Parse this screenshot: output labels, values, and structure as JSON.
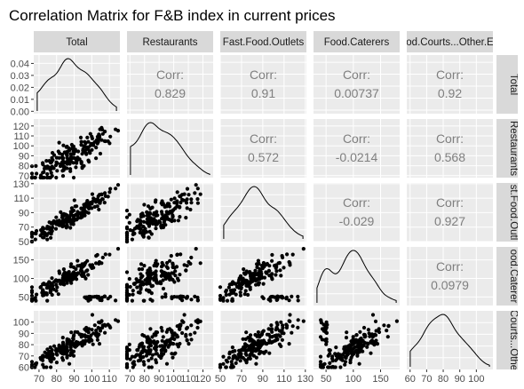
{
  "chart_data": {
    "type": "scatter-matrix",
    "title": "Correlation Matrix for F&B index in current prices",
    "variables": [
      {
        "label": "Total",
        "row_label": "Total",
        "ticks": [
          70,
          80,
          90,
          100,
          110
        ],
        "range": [
          67,
          116
        ]
      },
      {
        "label": "Restaurants",
        "row_label": "Restaurants",
        "ticks": [
          70,
          80,
          90,
          100,
          110,
          120
        ],
        "range": [
          68,
          127
        ]
      },
      {
        "label": "Fast.Food.Outlets",
        "row_label": "st.Food.Outl",
        "ticks": [
          50,
          70,
          90,
          110,
          130
        ],
        "range": [
          50,
          131
        ]
      },
      {
        "label": "Food.Caterers",
        "row_label": "ood.Caterer",
        "ticks": [
          50,
          100,
          150
        ],
        "range": [
          27,
          185
        ]
      },
      {
        "label": "od.Courts...Other.E",
        "row_label": "Courts...Othe",
        "ticks": [
          60,
          70,
          80,
          90,
          100
        ],
        "range": [
          58,
          110
        ]
      }
    ],
    "density_axis": {
      "ticks": [
        "0.00",
        "0.01",
        "0.02",
        "0.03",
        "0.04"
      ],
      "values": [
        0,
        0.01,
        0.02,
        0.03,
        0.04
      ],
      "range": [
        -0.002,
        0.047
      ]
    },
    "correlations": [
      {
        "row": 0,
        "col": 1,
        "label": "Corr:",
        "value": "0.829"
      },
      {
        "row": 0,
        "col": 2,
        "label": "Corr:",
        "value": "0.91"
      },
      {
        "row": 0,
        "col": 3,
        "label": "Corr:",
        "value": "0.00737"
      },
      {
        "row": 0,
        "col": 4,
        "label": "Corr:",
        "value": "0.92"
      },
      {
        "row": 1,
        "col": 2,
        "label": "Corr:",
        "value": "0.572"
      },
      {
        "row": 1,
        "col": 3,
        "label": "Corr:",
        "value": "-0.0214"
      },
      {
        "row": 1,
        "col": 4,
        "label": "Corr:",
        "value": "0.568"
      },
      {
        "row": 2,
        "col": 3,
        "label": "Corr:",
        "value": "-0.029"
      },
      {
        "row": 2,
        "col": 4,
        "label": "Corr:",
        "value": "0.927"
      },
      {
        "row": 3,
        "col": 4,
        "label": "Corr:",
        "value": "0.0979"
      }
    ],
    "grid": true,
    "colors": {
      "panel_bg": "#ebebeb",
      "strip_bg": "#d9d9d9",
      "grid": "#ffffff",
      "points": "#000000",
      "corr_text": "#7f7f7f"
    }
  }
}
